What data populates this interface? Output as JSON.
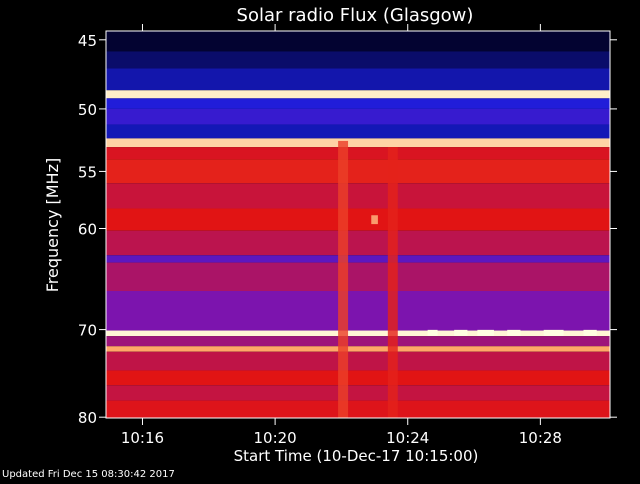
{
  "chart_data": {
    "type": "heatmap",
    "title": "Solar radio Flux (Glasgow)",
    "xlabel": "Start Time (10-Dec-17 10:15:00)",
    "ylabel": "Frequency [MHz]",
    "footer": "Updated Fri Dec 15 08:30:42 2017",
    "x_ticks": [
      "10:16",
      "10:20",
      "10:24",
      "10:28"
    ],
    "x_tick_minutes": [
      16,
      20,
      24,
      28
    ],
    "x_range_minutes": [
      14.9,
      30.1
    ],
    "y_ticks": [
      45,
      50,
      55,
      60,
      70,
      80
    ],
    "y_range": [
      44.4,
      80.1
    ],
    "y_scale": "log",
    "grid": false,
    "colors": {
      "background": "#000000",
      "axes": "#ffffff",
      "low": "#1f1fd6",
      "mid": "#d01010",
      "high": "#ffffff",
      "strong": "#ffe08a"
    },
    "bands": [
      {
        "start": 44.4,
        "end": 45.8,
        "level": 0.02
      },
      {
        "start": 45.8,
        "end": 47.0,
        "level": 0.08
      },
      {
        "start": 47.0,
        "end": 48.6,
        "level": 0.15
      },
      {
        "start": 48.6,
        "end": 49.2,
        "level": 0.98
      },
      {
        "start": 49.2,
        "end": 50.0,
        "level": 0.22
      },
      {
        "start": 50.0,
        "end": 51.2,
        "level": 0.28
      },
      {
        "start": 51.2,
        "end": 52.3,
        "level": 0.16
      },
      {
        "start": 52.3,
        "end": 53.0,
        "level": 0.95
      },
      {
        "start": 53.0,
        "end": 54.0,
        "level": 0.68
      },
      {
        "start": 54.0,
        "end": 56.0,
        "level": 0.72
      },
      {
        "start": 56.0,
        "end": 58.2,
        "level": 0.64
      },
      {
        "start": 58.2,
        "end": 60.2,
        "level": 0.7
      },
      {
        "start": 60.2,
        "end": 62.5,
        "level": 0.61
      },
      {
        "start": 62.5,
        "end": 63.2,
        "level": 0.38
      },
      {
        "start": 63.2,
        "end": 66.0,
        "level": 0.57
      },
      {
        "start": 66.0,
        "end": 70.1,
        "level": 0.46
      },
      {
        "start": 70.1,
        "end": 70.7,
        "level": 0.99
      },
      {
        "start": 70.7,
        "end": 71.8,
        "level": 0.54
      },
      {
        "start": 71.8,
        "end": 72.4,
        "level": 0.9
      },
      {
        "start": 72.4,
        "end": 74.5,
        "level": 0.62
      },
      {
        "start": 74.5,
        "end": 76.2,
        "level": 0.7
      },
      {
        "start": 76.2,
        "end": 78.0,
        "level": 0.63
      },
      {
        "start": 78.0,
        "end": 80.1,
        "level": 0.69
      }
    ],
    "bursts": [
      {
        "t_start": 21.9,
        "t_end": 22.2,
        "f_start": 52.5,
        "f_end": 80.1,
        "level": 0.76
      },
      {
        "t_start": 23.4,
        "t_end": 23.7,
        "f_start": 53.0,
        "f_end": 80.1,
        "level": 0.72
      },
      {
        "t_start": 22.9,
        "t_end": 23.1,
        "f_start": 58.8,
        "f_end": 59.6,
        "level": 0.92
      }
    ],
    "emission_segments": [
      {
        "t_start": 24.6,
        "t_end": 24.9,
        "f": 70.35,
        "level": 1.0
      },
      {
        "t_start": 25.4,
        "t_end": 25.8,
        "f": 70.35,
        "level": 1.0
      },
      {
        "t_start": 26.1,
        "t_end": 26.6,
        "f": 70.35,
        "level": 1.0
      },
      {
        "t_start": 27.0,
        "t_end": 27.4,
        "f": 70.35,
        "level": 1.0
      },
      {
        "t_start": 28.1,
        "t_end": 28.7,
        "f": 70.35,
        "level": 1.0
      },
      {
        "t_start": 29.3,
        "t_end": 29.7,
        "f": 70.35,
        "level": 1.0
      }
    ]
  }
}
